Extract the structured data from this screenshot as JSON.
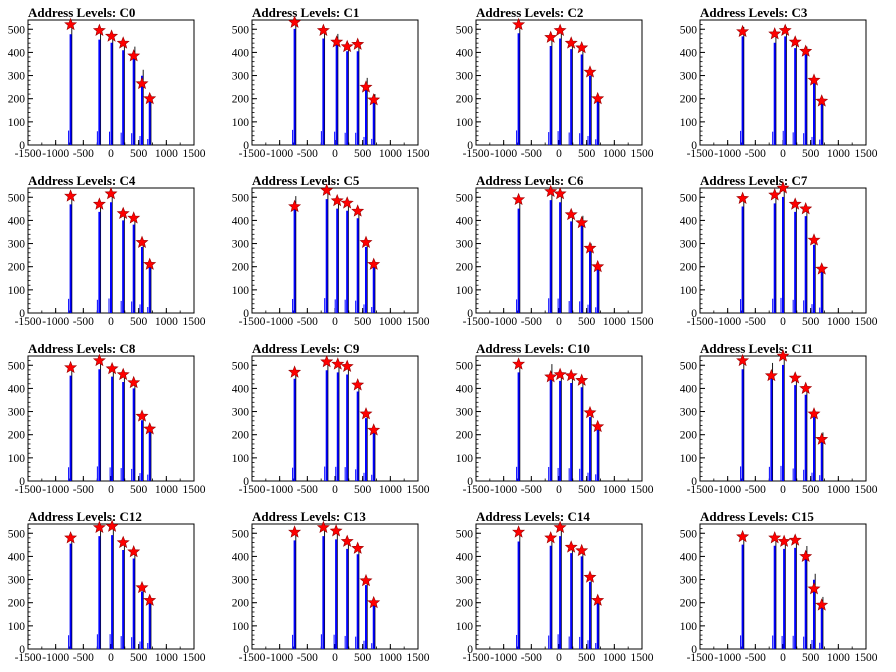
{
  "chart_data": [
    {
      "type": "bar",
      "title": "Address Levels: C0",
      "xlim": [
        -1500,
        1500
      ],
      "ylim": [
        0,
        540
      ],
      "xticks": [
        "-1500",
        "-1000",
        "-500",
        "0",
        "500",
        "1000",
        "1500"
      ],
      "yticks": [
        "0",
        "100",
        "200",
        "300",
        "400",
        "500"
      ],
      "peaks": [
        {
          "x": -730,
          "height": 520,
          "marker": 520
        },
        {
          "x": -210,
          "height": 495,
          "marker": 495
        },
        {
          "x": 10,
          "height": 480,
          "marker": 470
        },
        {
          "x": 220,
          "height": 445,
          "marker": 440
        },
        {
          "x": 410,
          "height": 425,
          "marker": 385
        },
        {
          "x": 560,
          "height": 325,
          "marker": 265
        },
        {
          "x": 700,
          "height": 215,
          "marker": 200
        }
      ]
    },
    {
      "type": "bar",
      "title": "Address Levels: C1",
      "xlim": [
        -1500,
        1500
      ],
      "ylim": [
        0,
        540
      ],
      "xticks": [
        "-1500",
        "-1000",
        "-500",
        "0",
        "500",
        "1000",
        "1500"
      ],
      "yticks": [
        "0",
        "100",
        "200",
        "300",
        "400",
        "500"
      ],
      "peaks": [
        {
          "x": -730,
          "height": 545,
          "marker": 530
        },
        {
          "x": -210,
          "height": 500,
          "marker": 495
        },
        {
          "x": 30,
          "height": 480,
          "marker": 445
        },
        {
          "x": 220,
          "height": 440,
          "marker": 425
        },
        {
          "x": 410,
          "height": 440,
          "marker": 435
        },
        {
          "x": 560,
          "height": 290,
          "marker": 250
        },
        {
          "x": 700,
          "height": 220,
          "marker": 195
        }
      ]
    },
    {
      "type": "bar",
      "title": "Address Levels: C2",
      "xlim": [
        -1500,
        1500
      ],
      "ylim": [
        0,
        540
      ],
      "xticks": [
        "-1500",
        "-1000",
        "-500",
        "0",
        "500",
        "1000",
        "1500"
      ],
      "yticks": [
        "0",
        "100",
        "200",
        "300",
        "400",
        "500"
      ],
      "peaks": [
        {
          "x": -730,
          "height": 525,
          "marker": 520
        },
        {
          "x": -150,
          "height": 465,
          "marker": 465
        },
        {
          "x": 20,
          "height": 500,
          "marker": 495
        },
        {
          "x": 220,
          "height": 450,
          "marker": 440
        },
        {
          "x": 410,
          "height": 425,
          "marker": 420
        },
        {
          "x": 560,
          "height": 325,
          "marker": 315
        },
        {
          "x": 700,
          "height": 205,
          "marker": 200
        }
      ]
    },
    {
      "type": "bar",
      "title": "Address Levels: C3",
      "xlim": [
        -1500,
        1500
      ],
      "ylim": [
        0,
        540
      ],
      "xticks": [
        "-1500",
        "-1000",
        "-500",
        "0",
        "500",
        "1000",
        "1500"
      ],
      "yticks": [
        "0",
        "100",
        "200",
        "300",
        "400",
        "500"
      ],
      "peaks": [
        {
          "x": -730,
          "height": 510,
          "marker": 490
        },
        {
          "x": -150,
          "height": 480,
          "marker": 480
        },
        {
          "x": 40,
          "height": 510,
          "marker": 495
        },
        {
          "x": 220,
          "height": 455,
          "marker": 445
        },
        {
          "x": 410,
          "height": 425,
          "marker": 405
        },
        {
          "x": 560,
          "height": 290,
          "marker": 280
        },
        {
          "x": 700,
          "height": 195,
          "marker": 190
        }
      ]
    },
    {
      "type": "bar",
      "title": "Address Levels: C4",
      "xlim": [
        -1500,
        1500
      ],
      "ylim": [
        0,
        540
      ],
      "xticks": [
        "-1500",
        "-1000",
        "-500",
        "0",
        "500",
        "1000",
        "1500"
      ],
      "yticks": [
        "0",
        "100",
        "200",
        "300",
        "400",
        "500"
      ],
      "peaks": [
        {
          "x": -730,
          "height": 510,
          "marker": 505
        },
        {
          "x": -210,
          "height": 475,
          "marker": 470
        },
        {
          "x": 0,
          "height": 520,
          "marker": 515
        },
        {
          "x": 220,
          "height": 435,
          "marker": 430
        },
        {
          "x": 410,
          "height": 415,
          "marker": 410
        },
        {
          "x": 560,
          "height": 310,
          "marker": 305
        },
        {
          "x": 700,
          "height": 215,
          "marker": 210
        }
      ]
    },
    {
      "type": "bar",
      "title": "Address Levels: C5",
      "xlim": [
        -1500,
        1500
      ],
      "ylim": [
        0,
        540
      ],
      "xticks": [
        "-1500",
        "-1000",
        "-500",
        "0",
        "500",
        "1000",
        "1500"
      ],
      "yticks": [
        "0",
        "100",
        "200",
        "300",
        "400",
        "500"
      ],
      "peaks": [
        {
          "x": -730,
          "height": 505,
          "marker": 460
        },
        {
          "x": -150,
          "height": 535,
          "marker": 530
        },
        {
          "x": 40,
          "height": 490,
          "marker": 485
        },
        {
          "x": 220,
          "height": 480,
          "marker": 475
        },
        {
          "x": 410,
          "height": 445,
          "marker": 440
        },
        {
          "x": 560,
          "height": 310,
          "marker": 305
        },
        {
          "x": 700,
          "height": 215,
          "marker": 210
        }
      ]
    },
    {
      "type": "bar",
      "title": "Address Levels: C6",
      "xlim": [
        -1500,
        1500
      ],
      "ylim": [
        0,
        540
      ],
      "xticks": [
        "-1500",
        "-1000",
        "-500",
        "0",
        "500",
        "1000",
        "1500"
      ],
      "yticks": [
        "0",
        "100",
        "200",
        "300",
        "400",
        "500"
      ],
      "peaks": [
        {
          "x": -730,
          "height": 490,
          "marker": 490
        },
        {
          "x": -150,
          "height": 530,
          "marker": 525
        },
        {
          "x": 20,
          "height": 520,
          "marker": 515
        },
        {
          "x": 220,
          "height": 430,
          "marker": 425
        },
        {
          "x": 410,
          "height": 420,
          "marker": 390
        },
        {
          "x": 560,
          "height": 300,
          "marker": 280
        },
        {
          "x": 700,
          "height": 205,
          "marker": 200
        }
      ]
    },
    {
      "type": "bar",
      "title": "Address Levels: C7",
      "xlim": [
        -1500,
        1500
      ],
      "ylim": [
        0,
        540
      ],
      "xticks": [
        "-1500",
        "-1000",
        "-500",
        "0",
        "500",
        "1000",
        "1500"
      ],
      "yticks": [
        "0",
        "100",
        "200",
        "300",
        "400",
        "500"
      ],
      "peaks": [
        {
          "x": -730,
          "height": 500,
          "marker": 495
        },
        {
          "x": -150,
          "height": 515,
          "marker": 510
        },
        {
          "x": 0,
          "height": 545,
          "marker": 540
        },
        {
          "x": 220,
          "height": 475,
          "marker": 470
        },
        {
          "x": 410,
          "height": 455,
          "marker": 450
        },
        {
          "x": 560,
          "height": 320,
          "marker": 315
        },
        {
          "x": 700,
          "height": 195,
          "marker": 190
        }
      ]
    },
    {
      "type": "bar",
      "title": "Address Levels: C8",
      "xlim": [
        -1500,
        1500
      ],
      "ylim": [
        0,
        540
      ],
      "xticks": [
        "-1500",
        "-1000",
        "-500",
        "0",
        "500",
        "1000",
        "1500"
      ],
      "yticks": [
        "0",
        "100",
        "200",
        "300",
        "400",
        "500"
      ],
      "peaks": [
        {
          "x": -730,
          "height": 495,
          "marker": 490
        },
        {
          "x": -210,
          "height": 525,
          "marker": 520
        },
        {
          "x": 20,
          "height": 490,
          "marker": 485
        },
        {
          "x": 220,
          "height": 465,
          "marker": 460
        },
        {
          "x": 410,
          "height": 435,
          "marker": 425
        },
        {
          "x": 560,
          "height": 285,
          "marker": 280
        },
        {
          "x": 700,
          "height": 230,
          "marker": 225
        }
      ]
    },
    {
      "type": "bar",
      "title": "Address Levels: C9",
      "xlim": [
        -1500,
        1500
      ],
      "ylim": [
        0,
        540
      ],
      "xticks": [
        "-1500",
        "-1000",
        "-500",
        "0",
        "500",
        "1000",
        "1500"
      ],
      "yticks": [
        "0",
        "100",
        "200",
        "300",
        "400",
        "500"
      ],
      "peaks": [
        {
          "x": -730,
          "height": 480,
          "marker": 470
        },
        {
          "x": -150,
          "height": 520,
          "marker": 515
        },
        {
          "x": 50,
          "height": 510,
          "marker": 505
        },
        {
          "x": 220,
          "height": 500,
          "marker": 495
        },
        {
          "x": 410,
          "height": 420,
          "marker": 415
        },
        {
          "x": 560,
          "height": 295,
          "marker": 290
        },
        {
          "x": 700,
          "height": 225,
          "marker": 220
        }
      ]
    },
    {
      "type": "bar",
      "title": "Address Levels: C10",
      "xlim": [
        -1500,
        1500
      ],
      "ylim": [
        0,
        540
      ],
      "xticks": [
        "-1500",
        "-1000",
        "-500",
        "0",
        "500",
        "1000",
        "1500"
      ],
      "yticks": [
        "0",
        "100",
        "200",
        "300",
        "400",
        "500"
      ],
      "peaks": [
        {
          "x": -730,
          "height": 510,
          "marker": 505
        },
        {
          "x": -150,
          "height": 505,
          "marker": 450
        },
        {
          "x": 20,
          "height": 470,
          "marker": 460
        },
        {
          "x": 220,
          "height": 460,
          "marker": 455
        },
        {
          "x": 410,
          "height": 440,
          "marker": 435
        },
        {
          "x": 560,
          "height": 300,
          "marker": 295
        },
        {
          "x": 700,
          "height": 240,
          "marker": 235
        }
      ]
    },
    {
      "type": "bar",
      "title": "Address Levels: C11",
      "xlim": [
        -1500,
        1500
      ],
      "ylim": [
        0,
        540
      ],
      "xticks": [
        "-1500",
        "-1000",
        "-500",
        "0",
        "500",
        "1000",
        "1500"
      ],
      "yticks": [
        "0",
        "100",
        "200",
        "300",
        "400",
        "500"
      ],
      "peaks": [
        {
          "x": -730,
          "height": 525,
          "marker": 520
        },
        {
          "x": -210,
          "height": 510,
          "marker": 455
        },
        {
          "x": 0,
          "height": 545,
          "marker": 540
        },
        {
          "x": 220,
          "height": 450,
          "marker": 445
        },
        {
          "x": 410,
          "height": 405,
          "marker": 400
        },
        {
          "x": 560,
          "height": 300,
          "marker": 290
        },
        {
          "x": 700,
          "height": 210,
          "marker": 180
        }
      ]
    },
    {
      "type": "bar",
      "title": "Address Levels: C12",
      "xlim": [
        -1500,
        1500
      ],
      "ylim": [
        0,
        540
      ],
      "xticks": [
        "-1500",
        "-1000",
        "-500",
        "0",
        "500",
        "1000",
        "1500"
      ],
      "yticks": [
        "0",
        "100",
        "200",
        "300",
        "400",
        "500"
      ],
      "peaks": [
        {
          "x": -730,
          "height": 495,
          "marker": 480
        },
        {
          "x": -210,
          "height": 530,
          "marker": 525
        },
        {
          "x": 20,
          "height": 535,
          "marker": 530
        },
        {
          "x": 220,
          "height": 465,
          "marker": 460
        },
        {
          "x": 410,
          "height": 425,
          "marker": 420
        },
        {
          "x": 560,
          "height": 270,
          "marker": 265
        },
        {
          "x": 700,
          "height": 215,
          "marker": 210
        }
      ]
    },
    {
      "type": "bar",
      "title": "Address Levels: C13",
      "xlim": [
        -1500,
        1500
      ],
      "ylim": [
        0,
        540
      ],
      "xticks": [
        "-1500",
        "-1000",
        "-500",
        "0",
        "500",
        "1000",
        "1500"
      ],
      "yticks": [
        "0",
        "100",
        "200",
        "300",
        "400",
        "500"
      ],
      "peaks": [
        {
          "x": -730,
          "height": 510,
          "marker": 505
        },
        {
          "x": -210,
          "height": 530,
          "marker": 525
        },
        {
          "x": 20,
          "height": 515,
          "marker": 510
        },
        {
          "x": 220,
          "height": 470,
          "marker": 465
        },
        {
          "x": 410,
          "height": 445,
          "marker": 435
        },
        {
          "x": 560,
          "height": 300,
          "marker": 295
        },
        {
          "x": 700,
          "height": 210,
          "marker": 200
        }
      ]
    },
    {
      "type": "bar",
      "title": "Address Levels: C14",
      "xlim": [
        -1500,
        1500
      ],
      "ylim": [
        0,
        540
      ],
      "xticks": [
        "-1500",
        "-1000",
        "-500",
        "0",
        "500",
        "1000",
        "1500"
      ],
      "yticks": [
        "0",
        "100",
        "200",
        "300",
        "400",
        "500"
      ],
      "peaks": [
        {
          "x": -730,
          "height": 505,
          "marker": 505
        },
        {
          "x": -150,
          "height": 485,
          "marker": 480
        },
        {
          "x": 20,
          "height": 530,
          "marker": 525
        },
        {
          "x": 220,
          "height": 450,
          "marker": 440
        },
        {
          "x": 410,
          "height": 435,
          "marker": 425
        },
        {
          "x": 560,
          "height": 315,
          "marker": 310
        },
        {
          "x": 700,
          "height": 215,
          "marker": 210
        }
      ]
    },
    {
      "type": "bar",
      "title": "Address Levels: C15",
      "xlim": [
        -1500,
        1500
      ],
      "ylim": [
        0,
        540
      ],
      "xticks": [
        "-1500",
        "-1000",
        "-500",
        "0",
        "500",
        "1000",
        "1500"
      ],
      "yticks": [
        "0",
        "100",
        "200",
        "300",
        "400",
        "500"
      ],
      "peaks": [
        {
          "x": -730,
          "height": 490,
          "marker": 485
        },
        {
          "x": -150,
          "height": 485,
          "marker": 480
        },
        {
          "x": 20,
          "height": 470,
          "marker": 465
        },
        {
          "x": 220,
          "height": 475,
          "marker": 470
        },
        {
          "x": 410,
          "height": 445,
          "marker": 400
        },
        {
          "x": 560,
          "height": 325,
          "marker": 260
        },
        {
          "x": 700,
          "height": 225,
          "marker": 190
        }
      ]
    }
  ],
  "colors": {
    "bar": "#0000ff",
    "spike": "#000000",
    "marker": "#ff0000",
    "marker_edge": "#990000",
    "axis": "#000000"
  }
}
